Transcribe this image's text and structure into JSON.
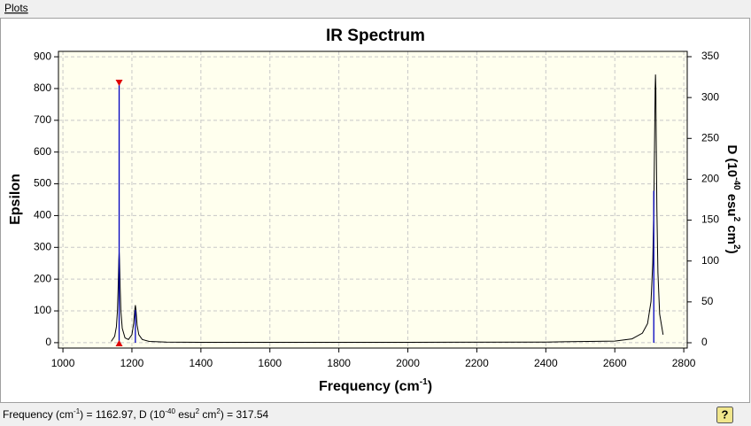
{
  "menu": [
    "Plots"
  ],
  "chart_data": {
    "type": "line",
    "title": "IR Spectrum",
    "x_label": [
      "Frequency (cm",
      "-1",
      ")"
    ],
    "y_label": "Epsilon",
    "y2_label": [
      "D (10",
      "-40",
      " esu",
      "2",
      " cm",
      "2",
      ")"
    ],
    "xlim": [
      987,
      2810
    ],
    "xticks": [
      1000,
      1200,
      1400,
      1600,
      1800,
      2000,
      2200,
      2400,
      2600,
      2800
    ],
    "ylim": [
      -17,
      917
    ],
    "yticks": [
      0,
      100,
      200,
      300,
      400,
      500,
      600,
      700,
      800,
      900
    ],
    "y2lim": [
      -6.5,
      356.5
    ],
    "y2ticks": [
      0,
      50,
      100,
      150,
      200,
      250,
      300,
      350
    ],
    "grid": true,
    "highlight_index": 0,
    "series": [
      {
        "color": "#000000",
        "x": [
          1140,
          1150,
          1155,
          1158,
          1160,
          1162,
          1163,
          1164,
          1166,
          1168,
          1172,
          1180,
          1190,
          1200,
          1205,
          1208,
          1210,
          1212,
          1215,
          1220,
          1230,
          1250,
          1300,
          1400,
          1600,
          2000,
          2400,
          2600,
          2650,
          2680,
          2695,
          2705,
          2710,
          2713,
          2715,
          2717,
          2718,
          2719,
          2720,
          2722,
          2725,
          2730,
          2740
        ],
        "values": [
          4,
          20,
          50,
          100,
          170,
          260,
          285,
          260,
          170,
          100,
          45,
          15,
          10,
          25,
          60,
          100,
          118,
          100,
          55,
          25,
          10,
          4,
          2,
          1,
          1,
          1,
          2,
          5,
          12,
          30,
          60,
          130,
          250,
          420,
          600,
          800,
          844,
          800,
          650,
          420,
          220,
          90,
          25
        ]
      },
      {
        "axis": "y2",
        "style": "stick",
        "color": "#0000c0",
        "x": [
          1162.97,
          1210,
          2713
        ],
        "values": [
          317.54,
          40,
          186
        ]
      }
    ]
  },
  "status_bar": [
    "Frequency (cm",
    "-1",
    ") = 1162.97, D (10",
    "-40",
    " esu",
    "2",
    " cm",
    "2",
    ") = 317.54"
  ],
  "help_button": "?"
}
